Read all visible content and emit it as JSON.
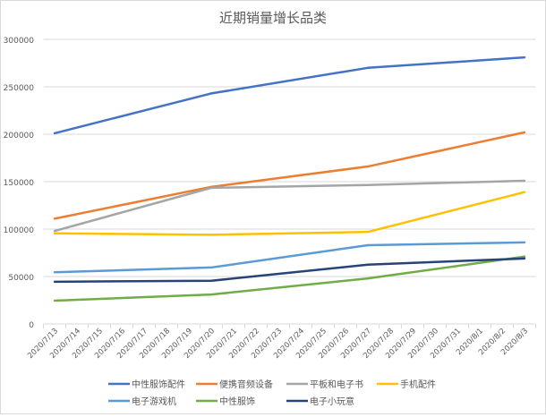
{
  "chart_data": {
    "type": "line",
    "title": "近期销量增长品类",
    "xlabel": "",
    "ylabel": "",
    "ylim": [
      0,
      300000
    ],
    "yticks": [
      0,
      50000,
      100000,
      150000,
      200000,
      250000,
      300000
    ],
    "grid": true,
    "legend_position": "bottom",
    "categories": [
      "2020/7/13",
      "2020/7/14",
      "2020/7/15",
      "2020/7/16",
      "2020/7/17",
      "2020/7/18",
      "2020/7/19",
      "2020/7/20",
      "2020/7/21",
      "2020/7/22",
      "2020/7/23",
      "2020/7/24",
      "2020/7/25",
      "2020/7/26",
      "2020/7/27",
      "2020/7/28",
      "2020/7/29",
      "2020/7/30",
      "2020/7/31",
      "2020/8/1",
      "2020/8/2",
      "2020/8/3"
    ],
    "x": [
      "2020/7/13",
      "2020/7/20",
      "2020/7/27",
      "2020/8/3"
    ],
    "series": [
      {
        "name": "中性服饰配件",
        "color": "#4472c4",
        "values": [
          201000,
          243000,
          270000,
          281000
        ]
      },
      {
        "name": "便携音频设备",
        "color": "#ed7d31",
        "values": [
          111000,
          144500,
          166000,
          202000
        ]
      },
      {
        "name": "平板和电子书",
        "color": "#a5a5a5",
        "values": [
          98000,
          143500,
          146500,
          151000
        ]
      },
      {
        "name": "手机配件",
        "color": "#ffc000",
        "values": [
          95500,
          94000,
          97000,
          139000
        ]
      },
      {
        "name": "电子游戏机",
        "color": "#5b9bd5",
        "values": [
          54500,
          59500,
          83000,
          86000
        ]
      },
      {
        "name": "中性服饰",
        "color": "#70ad47",
        "values": [
          24500,
          31000,
          48000,
          71000
        ]
      },
      {
        "name": "电子小玩意",
        "color": "#264478",
        "values": [
          44500,
          45500,
          62500,
          69000
        ]
      }
    ]
  }
}
